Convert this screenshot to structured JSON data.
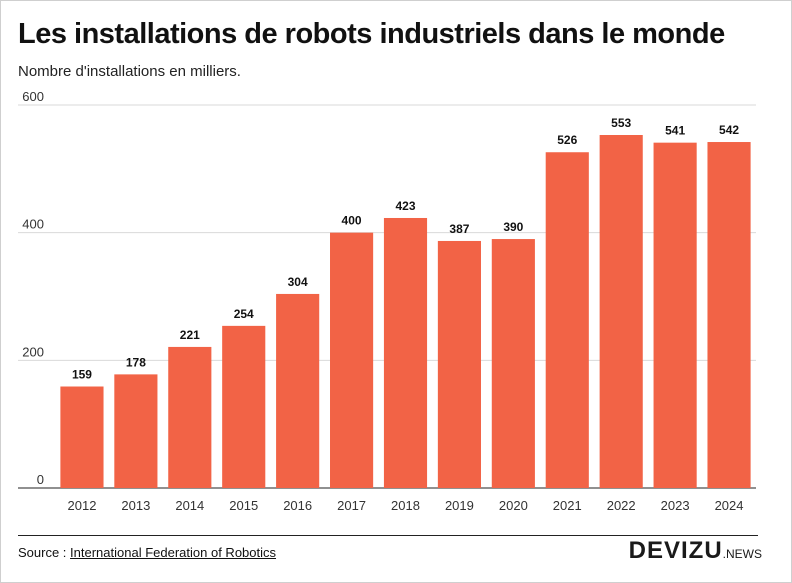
{
  "header": {
    "title": "Les installations de robots industriels dans le monde",
    "subtitle": "Nombre d'installations en milliers."
  },
  "footer": {
    "source_prefix": "Source :",
    "source_link": "International Federation of Robotics",
    "brand_main": "DEVIZU",
    "brand_sub": ".NEWS"
  },
  "colors": {
    "bar": "#f26346",
    "grid": "#d9d9d9",
    "axis": "#222222"
  },
  "chart_data": {
    "type": "bar",
    "title": "Les installations de robots industriels dans le monde",
    "subtitle": "Nombre d'installations en milliers.",
    "categories": [
      "2012",
      "2013",
      "2014",
      "2015",
      "2016",
      "2017",
      "2018",
      "2019",
      "2020",
      "2021",
      "2022",
      "2023",
      "2024"
    ],
    "values": [
      159,
      178,
      221,
      254,
      304,
      400,
      423,
      387,
      390,
      526,
      553,
      541,
      542
    ],
    "ylim": [
      0,
      600
    ],
    "yticks": [
      0,
      200,
      400,
      600
    ],
    "grid": true,
    "legend": "none",
    "data_labels": true
  }
}
